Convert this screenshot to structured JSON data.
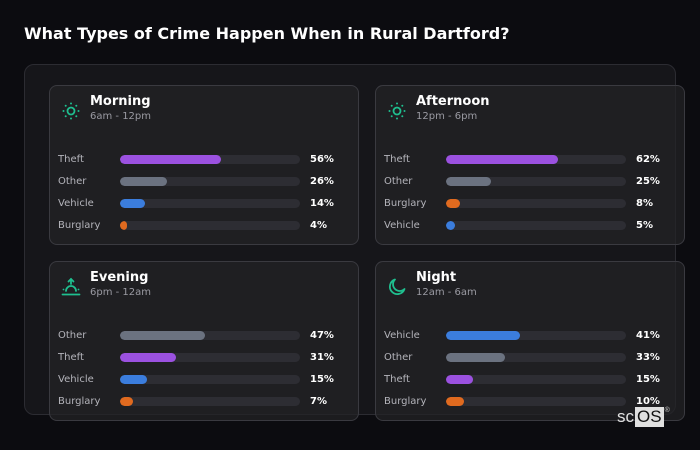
{
  "title": "What Types of Crime Happen When in Rural Dartford?",
  "colors": {
    "theft": "#9b51e0",
    "other": "#6b7280",
    "vehicle": "#3b7ddd",
    "burglary": "#e06a1f",
    "icon_accent": "#1fbf8f",
    "track": "#2d2d33"
  },
  "chart_data": {
    "type": "bar",
    "title": "What Types of Crime Happen When in Rural Dartford?",
    "xlabel": "",
    "ylabel": "",
    "unit": "%",
    "panels": [
      {
        "name": "Morning",
        "range": "6am - 12pm",
        "icon": "sun-icon",
        "categories": [
          "Theft",
          "Other",
          "Vehicle",
          "Burglary"
        ],
        "values": [
          56,
          26,
          14,
          4
        ]
      },
      {
        "name": "Afternoon",
        "range": "12pm - 6pm",
        "icon": "sun-icon",
        "categories": [
          "Theft",
          "Other",
          "Burglary",
          "Vehicle"
        ],
        "values": [
          62,
          25,
          8,
          5
        ]
      },
      {
        "name": "Evening",
        "range": "6pm - 12am",
        "icon": "sunset-icon",
        "categories": [
          "Other",
          "Theft",
          "Vehicle",
          "Burglary"
        ],
        "values": [
          47,
          31,
          15,
          7
        ]
      },
      {
        "name": "Night",
        "range": "12am - 6am",
        "icon": "moon-icon",
        "categories": [
          "Vehicle",
          "Other",
          "Theft",
          "Burglary"
        ],
        "values": [
          41,
          33,
          15,
          10
        ]
      }
    ],
    "ylim": [
      0,
      100
    ]
  },
  "panels": [
    {
      "name": "Morning",
      "range": "6am - 12pm",
      "rows": [
        {
          "label": "Theft",
          "value": "56%",
          "pct": 56,
          "key": "theft"
        },
        {
          "label": "Other",
          "value": "26%",
          "pct": 26,
          "key": "other"
        },
        {
          "label": "Vehicle",
          "value": "14%",
          "pct": 14,
          "key": "vehicle"
        },
        {
          "label": "Burglary",
          "value": "4%",
          "pct": 4,
          "key": "burglary"
        }
      ]
    },
    {
      "name": "Afternoon",
      "range": "12pm - 6pm",
      "rows": [
        {
          "label": "Theft",
          "value": "62%",
          "pct": 62,
          "key": "theft"
        },
        {
          "label": "Other",
          "value": "25%",
          "pct": 25,
          "key": "other"
        },
        {
          "label": "Burglary",
          "value": "8%",
          "pct": 8,
          "key": "burglary"
        },
        {
          "label": "Vehicle",
          "value": "5%",
          "pct": 5,
          "key": "vehicle"
        }
      ]
    },
    {
      "name": "Evening",
      "range": "6pm - 12am",
      "rows": [
        {
          "label": "Other",
          "value": "47%",
          "pct": 47,
          "key": "other"
        },
        {
          "label": "Theft",
          "value": "31%",
          "pct": 31,
          "key": "theft"
        },
        {
          "label": "Vehicle",
          "value": "15%",
          "pct": 15,
          "key": "vehicle"
        },
        {
          "label": "Burglary",
          "value": "7%",
          "pct": 7,
          "key": "burglary"
        }
      ]
    },
    {
      "name": "Night",
      "range": "12am - 6am",
      "rows": [
        {
          "label": "Vehicle",
          "value": "41%",
          "pct": 41,
          "key": "vehicle"
        },
        {
          "label": "Other",
          "value": "33%",
          "pct": 33,
          "key": "other"
        },
        {
          "label": "Theft",
          "value": "15%",
          "pct": 15,
          "key": "theft"
        },
        {
          "label": "Burglary",
          "value": "10%",
          "pct": 10,
          "key": "burglary"
        }
      ]
    }
  ],
  "logo": {
    "sc": "sc",
    "os": "OS",
    "reg": "®"
  }
}
